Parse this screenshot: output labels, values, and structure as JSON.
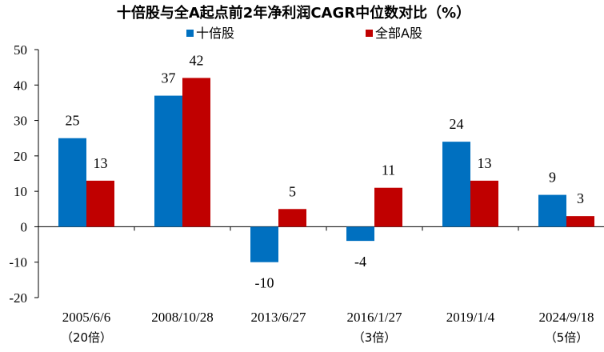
{
  "chart_data": {
    "type": "bar",
    "title": "十倍股与全A起点前2年净利润CAGR中位数对比（%）",
    "categories": [
      "2005/6/6",
      "2008/10/28",
      "2013/6/27",
      "2016/1/27",
      "2019/1/4",
      "2024/9/18"
    ],
    "category_notes": [
      "（20倍）",
      "",
      "",
      "（3倍）",
      "",
      "（5倍）"
    ],
    "series": [
      {
        "name": "十倍股",
        "color": "#0070C0",
        "values": [
          25,
          37,
          -10,
          -4,
          24,
          9
        ],
        "labels": [
          "25",
          "37",
          "-10",
          "-4",
          "24",
          "9"
        ]
      },
      {
        "name": "全部A股",
        "color": "#C00000",
        "values": [
          13,
          42,
          5,
          11,
          13,
          3
        ],
        "labels": [
          "13",
          "42",
          "5",
          "11",
          "13",
          "3"
        ]
      }
    ],
    "ylim": [
      -20,
      50
    ],
    "yticks": [
      -20,
      -10,
      0,
      10,
      20,
      30,
      40,
      50
    ],
    "xlabel": "",
    "ylabel": "",
    "grid": false,
    "legend_position": "top-center"
  }
}
